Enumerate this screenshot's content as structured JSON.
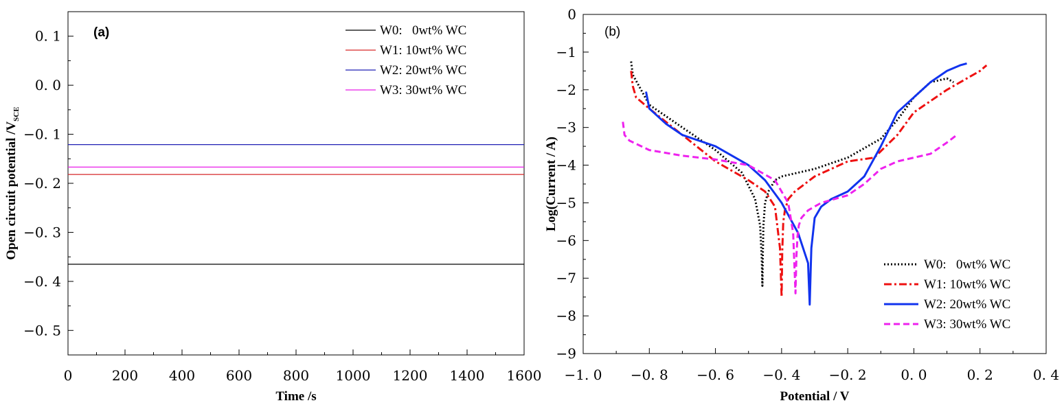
{
  "chart_data": [
    {
      "type": "line",
      "panel_label": "(a)",
      "xlabel": "Time /s",
      "ylabel": "Open circuit potential /V",
      "ylabel_subscript": "SCE",
      "xlim": [
        0,
        1600
      ],
      "ylim": [
        -0.55,
        0.15
      ],
      "xticks": [
        0,
        200,
        400,
        600,
        800,
        1000,
        1200,
        1400,
        1600
      ],
      "xtick_labels": [
        "0",
        "200",
        "400",
        "600",
        "800",
        "1000",
        "1200",
        "1400",
        "1600"
      ],
      "yticks": [
        0.1,
        0.0,
        -0.1,
        -0.2,
        -0.3,
        -0.4,
        -0.5
      ],
      "ytick_labels": [
        "0. 1",
        "0. 0",
        "−0. 1",
        "−0. 2",
        "−0. 3",
        "−0. 4",
        "−0. 5"
      ],
      "legend_position": "top-right",
      "series": [
        {
          "name": "W0:   0wt% WC",
          "color": "#000000",
          "x": [
            0,
            1600
          ],
          "y": [
            -0.365,
            -0.365
          ]
        },
        {
          "name": "W1: 10wt% WC",
          "color": "#d62728",
          "x": [
            0,
            1600
          ],
          "y": [
            -0.182,
            -0.182
          ]
        },
        {
          "name": "W2: 20wt% WC",
          "color": "#1f1fb4",
          "x": [
            0,
            1600
          ],
          "y": [
            -0.121,
            -0.121
          ]
        },
        {
          "name": "W3: 30wt% WC",
          "color": "#e81be8",
          "x": [
            0,
            1600
          ],
          "y": [
            -0.167,
            -0.167
          ]
        }
      ]
    },
    {
      "type": "line",
      "panel_label": "(b)",
      "xlabel": "Potential / V",
      "ylabel": "Log(Current / A)",
      "xlim": [
        -1.0,
        0.4
      ],
      "ylim": [
        -9,
        0
      ],
      "xticks": [
        -1.0,
        -0.8,
        -0.6,
        -0.4,
        -0.2,
        0.0,
        0.2,
        0.4
      ],
      "xtick_labels": [
        "−1. 0",
        "−0. 8",
        "−0. 6",
        "−0. 4",
        "−0. 2",
        "0. 0",
        "0. 2",
        "0. 4"
      ],
      "yticks": [
        0,
        -1,
        -2,
        -3,
        -4,
        -5,
        -6,
        -7,
        -8,
        -9
      ],
      "ytick_labels": [
        "0",
        "−1",
        "−2",
        "−3",
        "−4",
        "−5",
        "−6",
        "−7",
        "−8",
        "−9"
      ],
      "legend_position": "bottom-right",
      "series": [
        {
          "name": "W0:   0wt% WC",
          "color": "#000000",
          "style": "dotted",
          "x": [
            -0.855,
            -0.85,
            -0.8,
            -0.7,
            -0.6,
            -0.52,
            -0.48,
            -0.465,
            -0.46,
            -0.458,
            -0.457,
            -0.455,
            -0.45,
            -0.44,
            -0.42,
            -0.4,
            -0.3,
            -0.2,
            -0.1,
            -0.05,
            0.0,
            0.05,
            0.1,
            0.12
          ],
          "y": [
            -1.25,
            -1.6,
            -2.4,
            -3.0,
            -3.6,
            -4.2,
            -4.9,
            -5.6,
            -6.5,
            -7.2,
            -6.5,
            -5.6,
            -5.0,
            -4.7,
            -4.4,
            -4.3,
            -4.1,
            -3.8,
            -3.3,
            -2.8,
            -2.2,
            -1.8,
            -1.7,
            -1.8
          ]
        },
        {
          "name": "W1: 10wt% WC",
          "color": "#ee1111",
          "style": "dashdot",
          "x": [
            -0.855,
            -0.85,
            -0.84,
            -0.8,
            -0.7,
            -0.6,
            -0.5,
            -0.45,
            -0.42,
            -0.405,
            -0.4,
            -0.398,
            -0.395,
            -0.39,
            -0.38,
            -0.36,
            -0.3,
            -0.2,
            -0.12,
            -0.05,
            0.0,
            0.1,
            0.2,
            0.22
          ],
          "y": [
            -1.5,
            -1.9,
            -2.2,
            -2.5,
            -3.2,
            -3.9,
            -4.4,
            -4.7,
            -5.1,
            -6.2,
            -7.5,
            -6.3,
            -5.5,
            -5.2,
            -4.9,
            -4.7,
            -4.3,
            -3.9,
            -3.8,
            -3.2,
            -2.6,
            -2.0,
            -1.5,
            -1.35
          ]
        },
        {
          "name": "W2: 20wt% WC",
          "color": "#1133ee",
          "style": "solid",
          "x": [
            -0.81,
            -0.8,
            -0.75,
            -0.7,
            -0.6,
            -0.5,
            -0.45,
            -0.4,
            -0.35,
            -0.32,
            -0.315,
            -0.312,
            -0.31,
            -0.305,
            -0.3,
            -0.28,
            -0.25,
            -0.2,
            -0.15,
            -0.1,
            -0.05,
            0.0,
            0.05,
            0.1,
            0.14,
            0.16
          ],
          "y": [
            -2.05,
            -2.5,
            -2.9,
            -3.2,
            -3.5,
            -4.0,
            -4.4,
            -5.0,
            -5.8,
            -6.6,
            -7.7,
            -6.8,
            -6.2,
            -5.8,
            -5.4,
            -5.1,
            -4.9,
            -4.7,
            -4.3,
            -3.5,
            -2.6,
            -2.2,
            -1.8,
            -1.5,
            -1.35,
            -1.3
          ]
        },
        {
          "name": "W3: 30wt% WC",
          "color": "#ee22ee",
          "style": "dashed",
          "x": [
            -0.88,
            -0.875,
            -0.86,
            -0.8,
            -0.7,
            -0.6,
            -0.5,
            -0.42,
            -0.38,
            -0.365,
            -0.358,
            -0.355,
            -0.352,
            -0.348,
            -0.34,
            -0.32,
            -0.28,
            -0.2,
            -0.15,
            -0.1,
            -0.05,
            0.0,
            0.05,
            0.1,
            0.13
          ],
          "y": [
            -2.85,
            -3.2,
            -3.35,
            -3.6,
            -3.75,
            -3.85,
            -4.0,
            -4.4,
            -5.0,
            -5.8,
            -7.4,
            -6.4,
            -5.9,
            -5.6,
            -5.4,
            -5.2,
            -5.0,
            -4.8,
            -4.5,
            -4.1,
            -3.9,
            -3.8,
            -3.7,
            -3.4,
            -3.2
          ]
        }
      ]
    }
  ]
}
